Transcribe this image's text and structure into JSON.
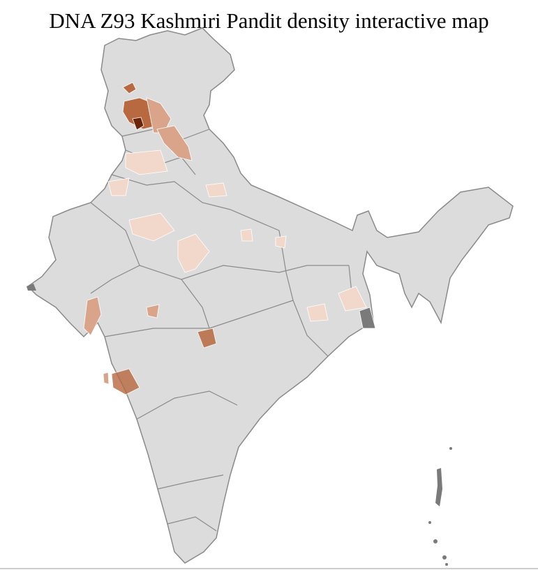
{
  "title": "DNA Z93 Kashmiri Pandit density interactive map",
  "colors": {
    "base": "#dcdcdc",
    "district_border": "#ffffff",
    "state_border": "#8a8a8a",
    "no_data": "#7a7a7a",
    "density_low": "#f2d8ca",
    "density_mid": "#d9a48a",
    "density_high": "#b8693f",
    "density_max": "#6b2408"
  }
}
